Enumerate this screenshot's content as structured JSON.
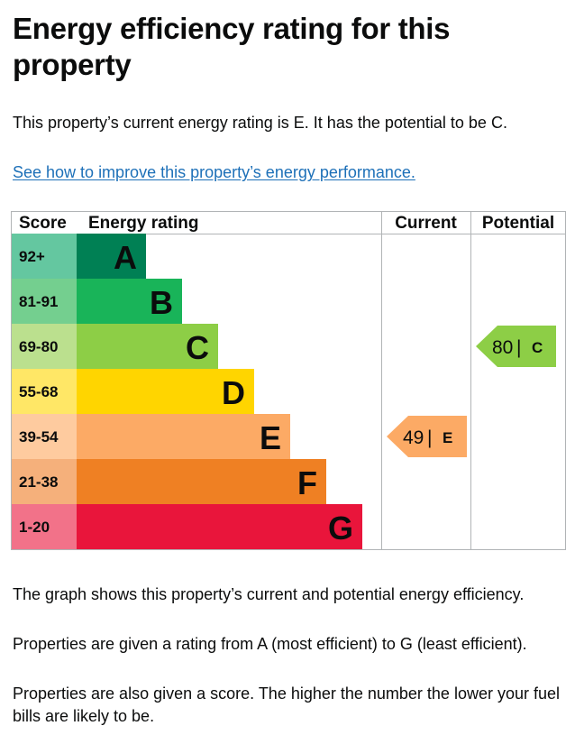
{
  "page": {
    "title": "Energy efficiency rating for this property",
    "summary": "This property’s current energy rating is E. It has the potential to be C.",
    "improve_link": "See how to improve this property’s energy performance.",
    "explanation_1": "The graph shows this property’s current and potential energy efficiency.",
    "explanation_2": "Properties are given a rating from A (most efficient) to G (least efficient).",
    "explanation_3": "Properties are also given a score. The higher the number the lower your fuel bills are likely to be."
  },
  "chart_data": {
    "type": "bar",
    "headers": {
      "score": "Score",
      "rating": "Energy rating",
      "current": "Current",
      "potential": "Potential"
    },
    "bands": [
      {
        "letter": "A",
        "range": "92+",
        "color": "#008054",
        "tint": "#64c7a0"
      },
      {
        "letter": "B",
        "range": "81-91",
        "color": "#19b459",
        "tint": "#74cf8f"
      },
      {
        "letter": "C",
        "range": "69-80",
        "color": "#8dce46",
        "tint": "#bbe08e"
      },
      {
        "letter": "D",
        "range": "55-68",
        "color": "#ffd500",
        "tint": "#ffe766"
      },
      {
        "letter": "E",
        "range": "39-54",
        "color": "#fcaa65",
        "tint": "#fecb9f"
      },
      {
        "letter": "F",
        "range": "21-38",
        "color": "#ef8023",
        "tint": "#f5b07b"
      },
      {
        "letter": "G",
        "range": "1-20",
        "color": "#e9153b",
        "tint": "#f27289"
      }
    ],
    "current": {
      "score": 49,
      "letter": "E",
      "color": "#fcaa65"
    },
    "potential": {
      "score": 80,
      "letter": "C",
      "color": "#8dce46"
    }
  }
}
